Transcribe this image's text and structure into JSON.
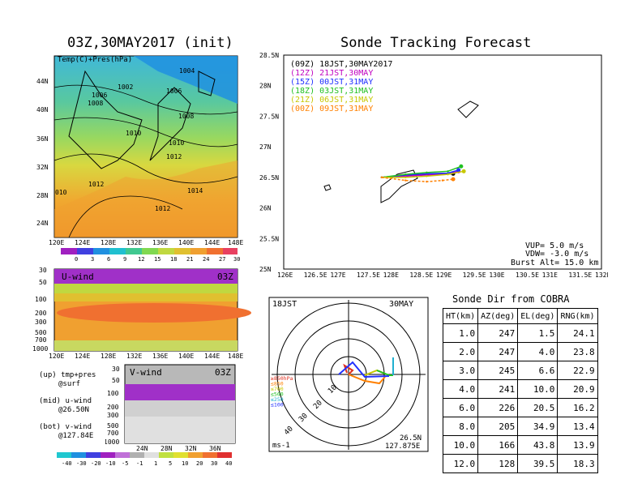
{
  "map": {
    "title": "03Z,30MAY2017 (init)",
    "subtitle": "Temp(C)+Pres(hPa)",
    "lat_labels": [
      "44N",
      "40N",
      "36N",
      "32N",
      "28N",
      "24N"
    ],
    "lon_labels": [
      "120E",
      "124E",
      "128E",
      "132E",
      "136E",
      "140E",
      "144E",
      "148E"
    ],
    "isobars": [
      "1004",
      "1002",
      "1006",
      "1008",
      "1006",
      "1008",
      "1010",
      "1010",
      "1012",
      "1012",
      "1014",
      "1012",
      "010"
    ],
    "colorbar_labels": [
      "0",
      "3",
      "6",
      "9",
      "12",
      "15",
      "18",
      "21",
      "24",
      "27",
      "30"
    ]
  },
  "uwind": {
    "label": "U-wind",
    "time": "03Z",
    "p_labels": [
      "30",
      "50",
      "100",
      "200",
      "300",
      "500",
      "700",
      "1000"
    ],
    "lon_labels": [
      "120E",
      "124E",
      "128E",
      "132E",
      "136E",
      "140E",
      "144E",
      "148E"
    ]
  },
  "vwind": {
    "label": "V-wind",
    "time": "03Z",
    "p_labels": [
      "30",
      "50",
      "100",
      "200",
      "300",
      "500",
      "700",
      "1000"
    ],
    "lat_labels": [
      "24N",
      "28N",
      "32N",
      "36N"
    ],
    "colorbar_labels": [
      "-40",
      "-30",
      "-20",
      "-10",
      "-5",
      "-1",
      "1",
      "5",
      "10",
      "20",
      "30",
      "40"
    ]
  },
  "legend_notes": {
    "up": "(up) tmp+pres",
    "up2": "@surf",
    "mid": "(mid) u-wind",
    "mid2": "@26.50N",
    "bot": "(bot) v-wind",
    "bot2": "@127.84E"
  },
  "track": {
    "title": "Sonde Tracking Forecast",
    "lat_labels": [
      "28.5N",
      "28N",
      "27.5N",
      "27N",
      "26.5N",
      "26N",
      "25.5N",
      "25N"
    ],
    "lon_labels": [
      "126E",
      "126.5E",
      "127E",
      "127.5E",
      "128E",
      "128.5E",
      "129E",
      "129.5E",
      "130E",
      "130.5E",
      "131E",
      "131.5E",
      "132E"
    ],
    "launches": [
      {
        "label": "(09Z)  18JST,30MAY2017",
        "color": "#000000"
      },
      {
        "label": "(12Z)  21JST,30MAY",
        "color": "#c000c0"
      },
      {
        "label": "(15Z)  00JST,31MAY",
        "color": "#2030ff"
      },
      {
        "label": "(18Z)  03JST,31MAY",
        "color": "#20c020"
      },
      {
        "label": "(21Z)  06JST,31MAY",
        "color": "#c8c800"
      },
      {
        "label": "(00Z)  09JST,31MAY",
        "color": "#ff8000"
      }
    ],
    "vup": "VUP=  5.0  m/s",
    "vdw": "VDW=  -3.0  m/s",
    "burst": "Burst Alt=  15.0  km"
  },
  "hodo": {
    "time": "18JST",
    "date": "30MAY",
    "rings": [
      "10",
      "20",
      "30",
      "40"
    ],
    "levels": [
      {
        "label": "≥850hPa",
        "color": "#e03020"
      },
      {
        "label": "≤850",
        "color": "#ff8000"
      },
      {
        "label": "≤700",
        "color": "#c8c800"
      },
      {
        "label": "≤500",
        "color": "#20c020"
      },
      {
        "label": "≤250",
        "color": "#20b0d0"
      },
      {
        "label": "≤100",
        "color": "#2030ff"
      }
    ],
    "unit": "ms-1",
    "loc_lat": "26.5N",
    "loc_lon": "127.875E"
  },
  "dir_table": {
    "title": "Sonde Dir from COBRA",
    "headers": [
      "HT(km)",
      "AZ(deg)",
      "EL(deg)",
      "RNG(km)"
    ],
    "rows": [
      [
        "1.0",
        "247",
        "1.5",
        "24.1"
      ],
      [
        "2.0",
        "247",
        "4.0",
        "23.8"
      ],
      [
        "3.0",
        "245",
        "6.6",
        "22.9"
      ],
      [
        "4.0",
        "241",
        "10.0",
        "20.9"
      ],
      [
        "6.0",
        "226",
        "20.5",
        "16.2"
      ],
      [
        "8.0",
        "205",
        "34.9",
        "13.4"
      ],
      [
        "10.0",
        "166",
        "43.8",
        "13.9"
      ],
      [
        "12.0",
        "128",
        "39.5",
        "18.3"
      ]
    ]
  },
  "chart_data": [
    {
      "type": "table",
      "title": "Sonde Dir from COBRA",
      "columns": [
        "HT(km)",
        "AZ(deg)",
        "EL(deg)",
        "RNG(km)"
      ],
      "rows": [
        [
          1.0,
          247,
          1.5,
          24.1
        ],
        [
          2.0,
          247,
          4.0,
          23.8
        ],
        [
          3.0,
          245,
          6.6,
          22.9
        ],
        [
          4.0,
          241,
          10.0,
          20.9
        ],
        [
          6.0,
          226,
          20.5,
          16.2
        ],
        [
          8.0,
          205,
          34.9,
          13.4
        ],
        [
          10.0,
          166,
          43.8,
          13.9
        ],
        [
          12.0,
          128,
          39.5,
          18.3
        ]
      ]
    },
    {
      "type": "line",
      "title": "Sonde Tracking Forecast",
      "xlim": [
        126,
        132
      ],
      "ylim": [
        25,
        28.5
      ],
      "series": [
        {
          "name": "(09Z) 18JST,30MAY2017",
          "x": [
            127.85,
            128.2,
            128.6,
            129.0,
            129.2
          ],
          "y": [
            26.5,
            26.53,
            26.55,
            26.55,
            26.56
          ]
        },
        {
          "name": "(12Z) 21JST,30MAY",
          "x": [
            127.85,
            128.3,
            128.7,
            129.1,
            129.3
          ],
          "y": [
            26.5,
            26.52,
            26.54,
            26.55,
            26.6
          ]
        },
        {
          "name": "(15Z) 00JST,31MAY",
          "x": [
            127.85,
            128.3,
            128.7,
            129.1,
            129.3
          ],
          "y": [
            26.5,
            26.54,
            26.56,
            26.57,
            26.62
          ]
        },
        {
          "name": "(18Z) 03JST,31MAY",
          "x": [
            127.85,
            128.3,
            128.7,
            129.1,
            129.35
          ],
          "y": [
            26.5,
            26.55,
            26.58,
            26.6,
            26.68
          ]
        },
        {
          "name": "(21Z) 06JST,31MAY",
          "x": [
            127.85,
            128.3,
            128.7,
            129.1,
            129.4
          ],
          "y": [
            26.5,
            26.5,
            26.52,
            26.55,
            26.6
          ]
        },
        {
          "name": "(00Z) 09JST,31MAY",
          "x": [
            127.85,
            128.3,
            128.7,
            129.0,
            129.2
          ],
          "y": [
            26.5,
            26.45,
            26.43,
            26.45,
            26.47
          ]
        }
      ]
    }
  ]
}
